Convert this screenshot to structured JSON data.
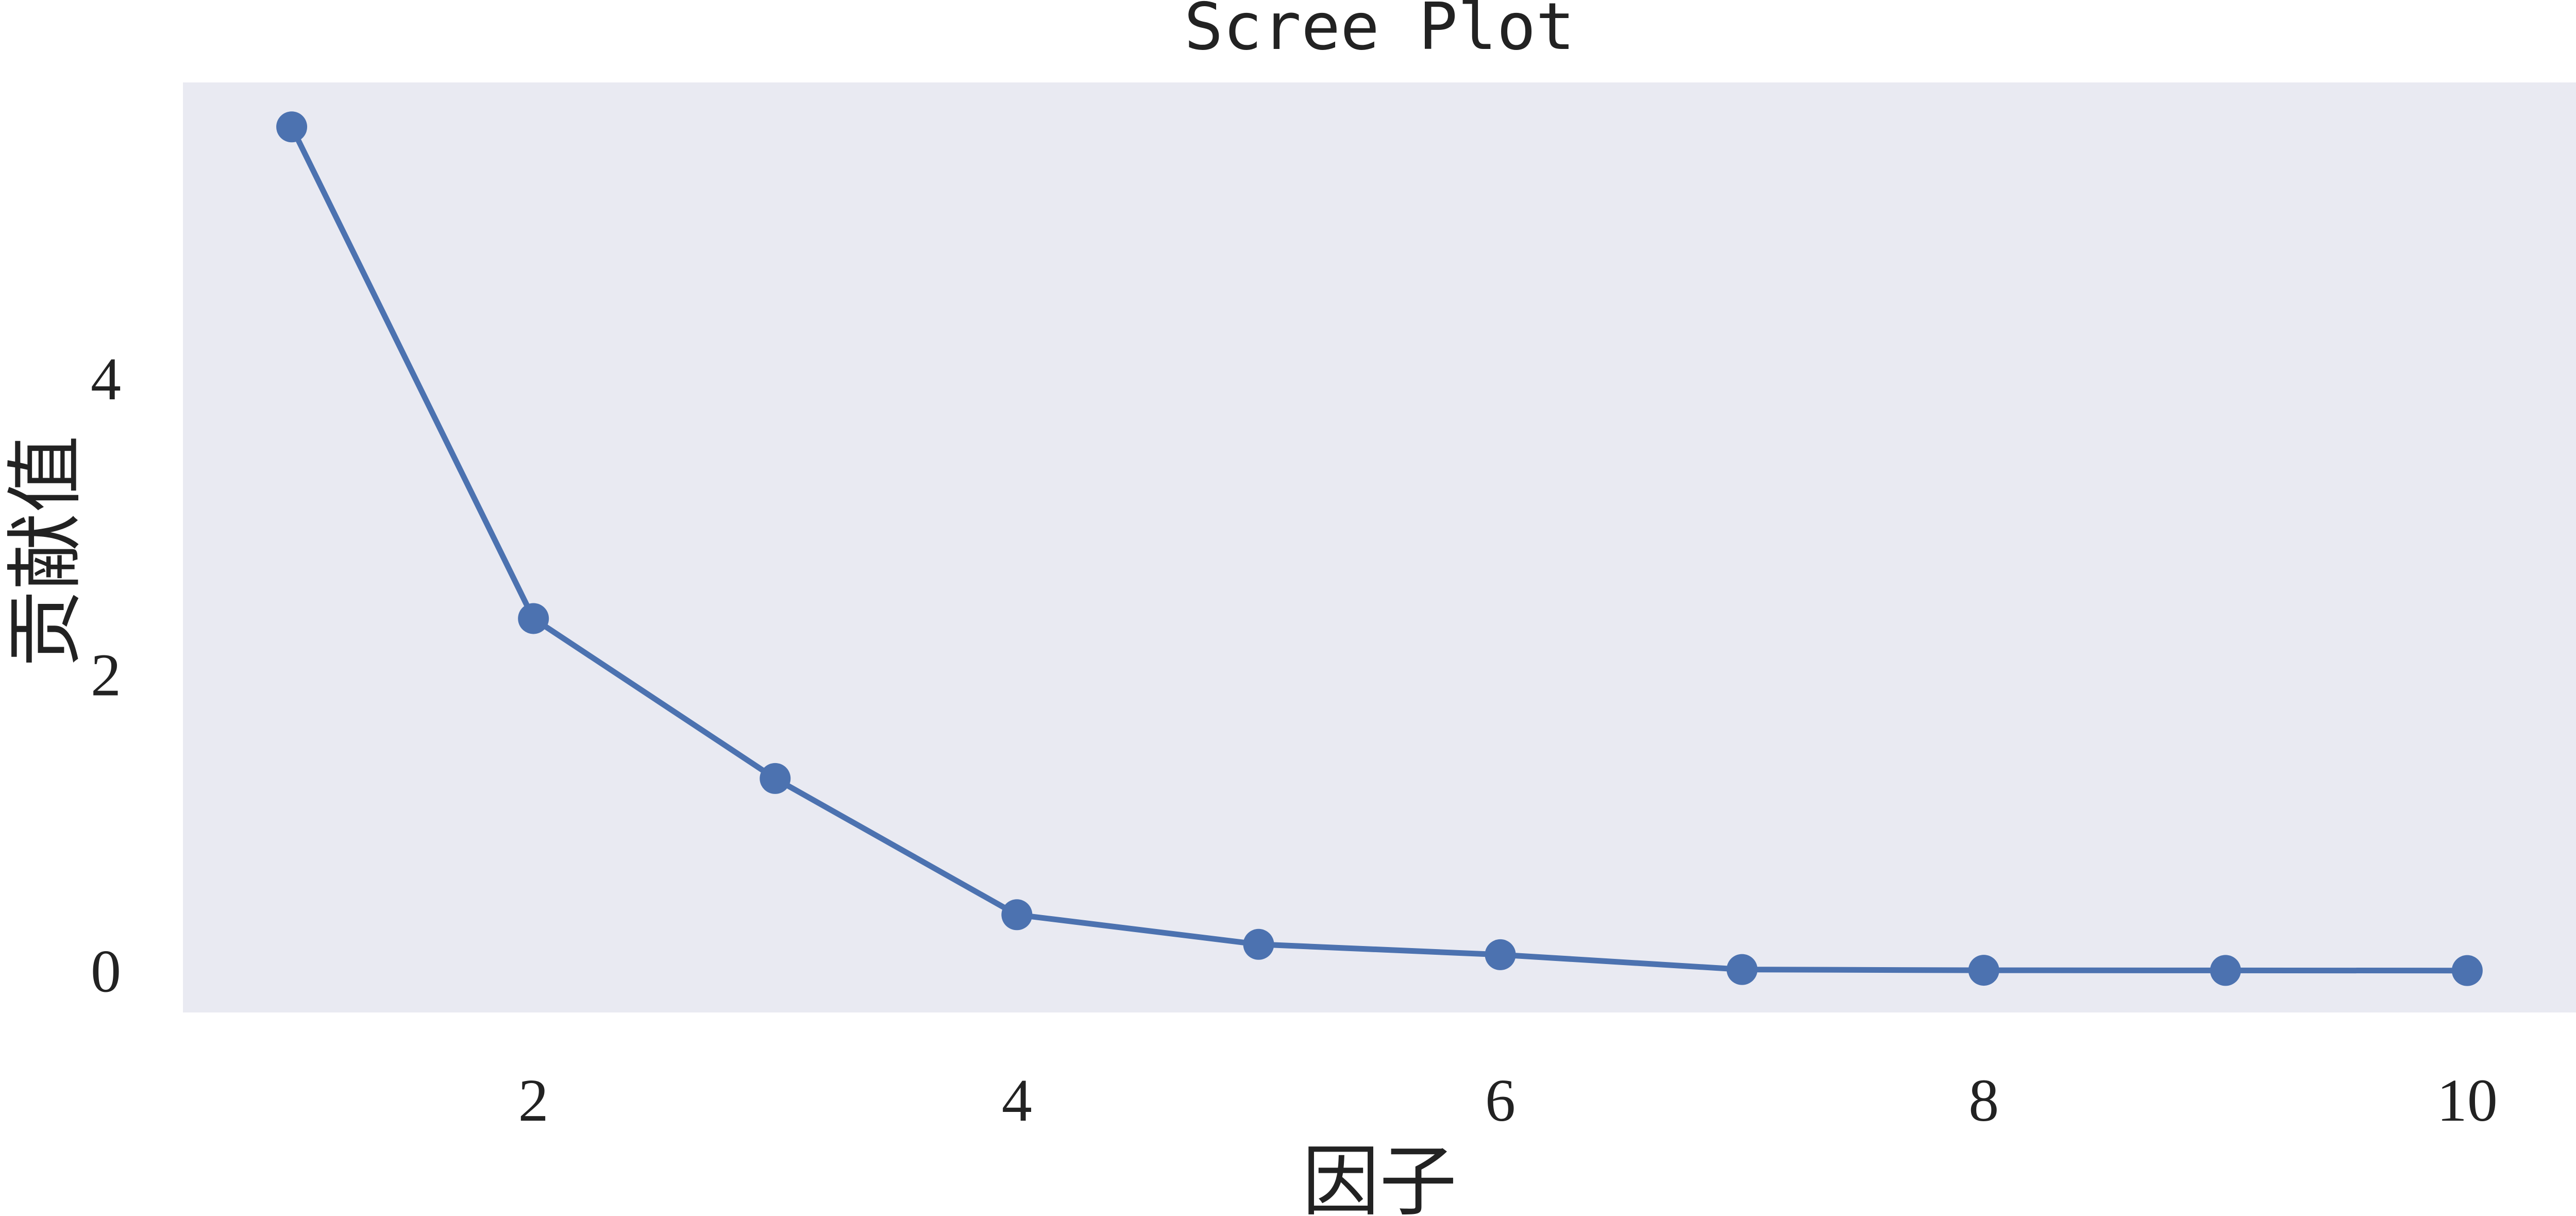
{
  "chart_data": {
    "type": "line",
    "title": "Scree Plot",
    "xlabel": "因子",
    "ylabel": "贡献值",
    "x": [
      1,
      2,
      3,
      4,
      5,
      6,
      7,
      8,
      9,
      10
    ],
    "series": [
      {
        "values": [
          5.7,
          2.38,
          1.3,
          0.38,
          0.18,
          0.11,
          0.01,
          0.005,
          0.004,
          0.003
        ]
      }
    ],
    "xticks": [
      "2",
      "4",
      "6",
      "8",
      "10"
    ],
    "yticks": [
      "0",
      "2",
      "4"
    ],
    "xlim": [
      0.55,
      10.45
    ],
    "ylim": [
      -0.28,
      6.0
    ],
    "grid": false,
    "background_color": "#e9eaf2",
    "line_color": "#4c72b0"
  }
}
